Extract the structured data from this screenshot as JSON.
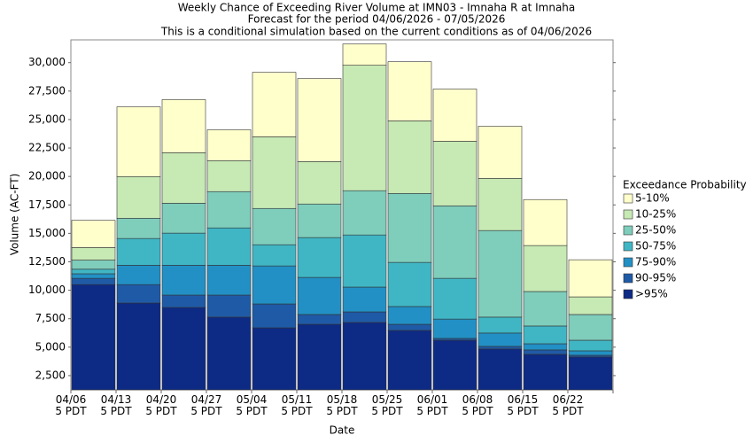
{
  "chart_data": {
    "type": "stacked_bar",
    "title": [
      "Weekly Chance of Exceeding River Volume at IMN03 - Imnaha R at Imnaha",
      "Forecast for the period 04/06/2026 - 07/05/2026",
      "This is a conditional simulation based on the current conditions as of 04/06/2026"
    ],
    "x_label": "Date",
    "y_label": "Volume (AC-FT)",
    "legend_title": "Exceedance Probability",
    "categories": [
      "04/06\n5 PDT",
      "04/13\n5 PDT",
      "04/20\n5 PDT",
      "04/27\n5 PDT",
      "05/04\n5 PDT",
      "05/11\n5 PDT",
      "05/18\n5 PDT",
      "05/25\n5 PDT",
      "06/01\n5 PDT",
      "06/08\n5 PDT",
      "06/15\n5 PDT",
      "06/22\n5 PDT"
    ],
    "series": [
      {
        "name": ">95%",
        "color": "#0d2a85",
        "values": [
          9250,
          7630,
          7240,
          6390,
          5450,
          5760,
          5920,
          5220,
          4360,
          3590,
          3120,
          2890
        ]
      },
      {
        "name": "90-95%",
        "color": "#1f5aa6",
        "values": [
          550,
          1620,
          1090,
          1940,
          2100,
          860,
          930,
          540,
          160,
          230,
          390,
          150
        ]
      },
      {
        "name": "75-90%",
        "color": "#2290c4",
        "values": [
          400,
          1700,
          2620,
          2620,
          3340,
          3260,
          2180,
          1560,
          1700,
          1170,
          540,
          390
        ]
      },
      {
        "name": "50-75%",
        "color": "#40b6c4",
        "values": [
          400,
          2350,
          2820,
          3280,
          1860,
          3500,
          4580,
          3880,
          3580,
          1400,
          1560,
          930
        ]
      },
      {
        "name": "25-50%",
        "color": "#7fcdbb",
        "values": [
          800,
          1780,
          2630,
          3190,
          3190,
          2950,
          3890,
          6060,
          6370,
          7610,
          3030,
          2260
        ]
      },
      {
        "name": "10-25%",
        "color": "#c7e9b4",
        "values": [
          1100,
          3660,
          4430,
          2720,
          6290,
          3730,
          11020,
          6370,
          5670,
          4580,
          4040,
          1550
        ]
      },
      {
        "name": "5-10%",
        "color": "#ffffcc",
        "values": [
          2400,
          6130,
          4670,
          2710,
          5670,
          7300,
          1870,
          5200,
          4590,
          4580,
          4040,
          3260
        ]
      }
    ],
    "ylim": [
      1250,
      32000
    ],
    "yticks": [
      {
        "value": 2500,
        "label": "2,500"
      },
      {
        "value": 5000,
        "label": "5,000"
      },
      {
        "value": 7500,
        "label": "7,500"
      },
      {
        "value": 10000,
        "label": "10,000"
      },
      {
        "value": 12500,
        "label": "12,500"
      },
      {
        "value": 15000,
        "label": "15,000"
      },
      {
        "value": 17500,
        "label": "17,500"
      },
      {
        "value": 20000,
        "label": "20,000"
      },
      {
        "value": 22500,
        "label": "22,500"
      },
      {
        "value": 25000,
        "label": "25,000"
      },
      {
        "value": 27500,
        "label": "27,500"
      },
      {
        "value": 30000,
        "label": "30,000"
      }
    ],
    "grid": false
  }
}
